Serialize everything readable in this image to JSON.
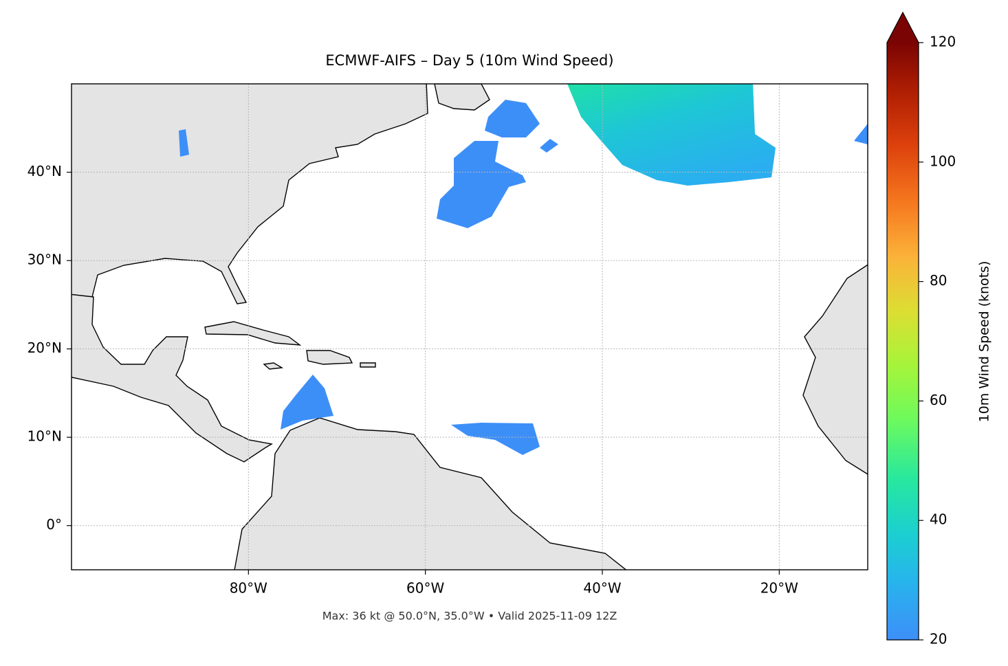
{
  "title": "ECMWF-AIFS – Day 5 (10m Wind Speed)",
  "map": {
    "lonlim": [
      -100,
      -10
    ],
    "latlim": [
      -5,
      50
    ],
    "xticks": [
      {
        "value": -80,
        "label": "80°W"
      },
      {
        "value": -60,
        "label": "60°W"
      },
      {
        "value": -40,
        "label": "40°W"
      },
      {
        "value": -20,
        "label": "20°W"
      }
    ],
    "yticks": [
      {
        "value": 0,
        "label": "0°"
      },
      {
        "value": 10,
        "label": "10°N"
      },
      {
        "value": 20,
        "label": "20°N"
      },
      {
        "value": 30,
        "label": "30°N"
      },
      {
        "value": 40,
        "label": "40°N"
      }
    ],
    "grid": true
  },
  "colorbar": {
    "label": "10m Wind Speed (knots)",
    "lim": [
      20,
      120
    ],
    "ticks": [
      20,
      40,
      60,
      80,
      100,
      120
    ]
  },
  "footer": "Max: 36 kt @ 50.0°N, 35.0°W • Valid 2025-11-09 12Z"
}
